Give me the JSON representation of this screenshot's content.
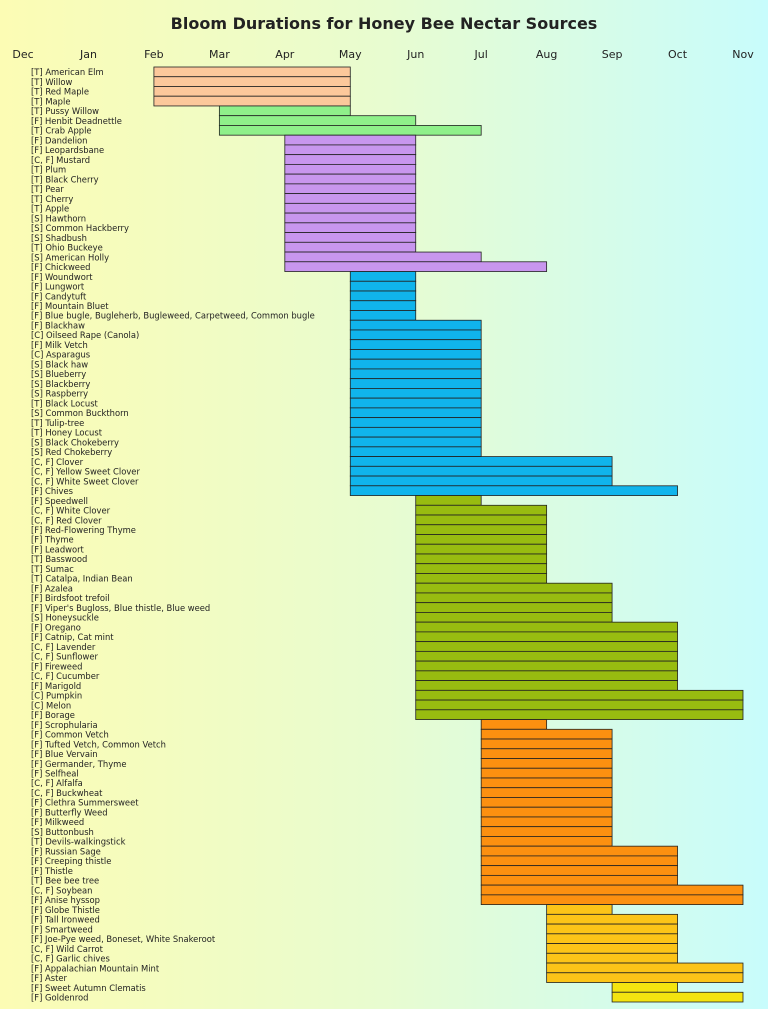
{
  "chart_data": {
    "type": "bar",
    "orientation": "horizontal",
    "title": "Bloom Durations for Honey Bee Nectar Sources",
    "x_axis": {
      "ticks": [
        "Dec",
        "Jan",
        "Feb",
        "Mar",
        "Apr",
        "May",
        "Jun",
        "Jul",
        "Aug",
        "Sep",
        "Oct",
        "Nov"
      ],
      "unit": "month (start of month)",
      "range": [
        "Dec",
        "Nov"
      ]
    },
    "legend": null,
    "items": [
      {
        "label": "[T] American Elm",
        "start": "Feb",
        "end": "May",
        "group": 0
      },
      {
        "label": "[T] Willow",
        "start": "Feb",
        "end": "May",
        "group": 0
      },
      {
        "label": "[T] Red Maple",
        "start": "Feb",
        "end": "May",
        "group": 0
      },
      {
        "label": "[T] Maple",
        "start": "Feb",
        "end": "May",
        "group": 0
      },
      {
        "label": "[T] Pussy Willow",
        "start": "Mar",
        "end": "May",
        "group": 1
      },
      {
        "label": "[F] Henbit Deadnettle",
        "start": "Mar",
        "end": "Jun",
        "group": 1
      },
      {
        "label": "[T] Crab Apple",
        "start": "Mar",
        "end": "Jul",
        "group": 1
      },
      {
        "label": "[F] Dandelion",
        "start": "Apr",
        "end": "Jun",
        "group": 2
      },
      {
        "label": "[F] Leopardsbane",
        "start": "Apr",
        "end": "Jun",
        "group": 2
      },
      {
        "label": "[C, F] Mustard",
        "start": "Apr",
        "end": "Jun",
        "group": 2
      },
      {
        "label": "[T] Plum",
        "start": "Apr",
        "end": "Jun",
        "group": 2
      },
      {
        "label": "[T] Black Cherry",
        "start": "Apr",
        "end": "Jun",
        "group": 2
      },
      {
        "label": "[T] Pear",
        "start": "Apr",
        "end": "Jun",
        "group": 2
      },
      {
        "label": "[T] Cherry",
        "start": "Apr",
        "end": "Jun",
        "group": 2
      },
      {
        "label": "[T] Apple",
        "start": "Apr",
        "end": "Jun",
        "group": 2
      },
      {
        "label": "[S] Hawthorn",
        "start": "Apr",
        "end": "Jun",
        "group": 2
      },
      {
        "label": "[S] Common Hackberry",
        "start": "Apr",
        "end": "Jun",
        "group": 2
      },
      {
        "label": "[S] Shadbush",
        "start": "Apr",
        "end": "Jun",
        "group": 2
      },
      {
        "label": "[T] Ohio Buckeye",
        "start": "Apr",
        "end": "Jun",
        "group": 2
      },
      {
        "label": "[S] American Holly",
        "start": "Apr",
        "end": "Jul",
        "group": 2
      },
      {
        "label": "[F] Chickweed",
        "start": "Apr",
        "end": "Aug",
        "group": 2
      },
      {
        "label": "[F] Woundwort",
        "start": "May",
        "end": "Jun",
        "group": 3
      },
      {
        "label": "[F] Lungwort",
        "start": "May",
        "end": "Jun",
        "group": 3
      },
      {
        "label": "[F] Candytuft",
        "start": "May",
        "end": "Jun",
        "group": 3
      },
      {
        "label": "[F] Mountain Bluet",
        "start": "May",
        "end": "Jun",
        "group": 3
      },
      {
        "label": "[F] Blue bugle, Bugleherb, Bugleweed, Carpetweed, Common bugle",
        "start": "May",
        "end": "Jun",
        "group": 3
      },
      {
        "label": "[F] Blackhaw",
        "start": "May",
        "end": "Jul",
        "group": 3
      },
      {
        "label": "[C] Oilseed Rape (Canola)",
        "start": "May",
        "end": "Jul",
        "group": 3
      },
      {
        "label": "[F] Milk Vetch",
        "start": "May",
        "end": "Jul",
        "group": 3
      },
      {
        "label": "[C] Asparagus",
        "start": "May",
        "end": "Jul",
        "group": 3
      },
      {
        "label": "[S] Black haw",
        "start": "May",
        "end": "Jul",
        "group": 3
      },
      {
        "label": "[S] Blueberry",
        "start": "May",
        "end": "Jul",
        "group": 3
      },
      {
        "label": "[S] Blackberry",
        "start": "May",
        "end": "Jul",
        "group": 3
      },
      {
        "label": "[S] Raspberry",
        "start": "May",
        "end": "Jul",
        "group": 3
      },
      {
        "label": "[T] Black Locust",
        "start": "May",
        "end": "Jul",
        "group": 3
      },
      {
        "label": "[S] Common Buckthorn",
        "start": "May",
        "end": "Jul",
        "group": 3
      },
      {
        "label": "[T] Tulip-tree",
        "start": "May",
        "end": "Jul",
        "group": 3
      },
      {
        "label": "[T] Honey Locust",
        "start": "May",
        "end": "Jul",
        "group": 3
      },
      {
        "label": "[S] Black Chokeberry",
        "start": "May",
        "end": "Jul",
        "group": 3
      },
      {
        "label": "[S] Red Chokeberry",
        "start": "May",
        "end": "Jul",
        "group": 3
      },
      {
        "label": "[C, F] Clover",
        "start": "May",
        "end": "Sep",
        "group": 3
      },
      {
        "label": "[C, F] Yellow Sweet Clover",
        "start": "May",
        "end": "Sep",
        "group": 3
      },
      {
        "label": "[C, F] White Sweet Clover",
        "start": "May",
        "end": "Sep",
        "group": 3
      },
      {
        "label": "[F] Chives",
        "start": "May",
        "end": "Oct",
        "group": 3
      },
      {
        "label": "[F] Speedwell",
        "start": "Jun",
        "end": "Jul",
        "group": 4
      },
      {
        "label": "[C, F] White Clover",
        "start": "Jun",
        "end": "Aug",
        "group": 4
      },
      {
        "label": "[C, F] Red Clover",
        "start": "Jun",
        "end": "Aug",
        "group": 4
      },
      {
        "label": "[F] Red-Flowering Thyme",
        "start": "Jun",
        "end": "Aug",
        "group": 4
      },
      {
        "label": "[F] Thyme",
        "start": "Jun",
        "end": "Aug",
        "group": 4
      },
      {
        "label": "[F] Leadwort",
        "start": "Jun",
        "end": "Aug",
        "group": 4
      },
      {
        "label": "[T] Basswood",
        "start": "Jun",
        "end": "Aug",
        "group": 4
      },
      {
        "label": "[T] Sumac",
        "start": "Jun",
        "end": "Aug",
        "group": 4
      },
      {
        "label": "[T] Catalpa, Indian Bean",
        "start": "Jun",
        "end": "Aug",
        "group": 4
      },
      {
        "label": "[F] Azalea",
        "start": "Jun",
        "end": "Sep",
        "group": 4
      },
      {
        "label": "[F] Birdsfoot trefoil",
        "start": "Jun",
        "end": "Sep",
        "group": 4
      },
      {
        "label": "[F] Viper's Bugloss, Blue thistle, Blue weed",
        "start": "Jun",
        "end": "Sep",
        "group": 4
      },
      {
        "label": "[S] Honeysuckle",
        "start": "Jun",
        "end": "Sep",
        "group": 4
      },
      {
        "label": "[F] Oregano",
        "start": "Jun",
        "end": "Oct",
        "group": 4
      },
      {
        "label": "[F] Catnip, Cat mint",
        "start": "Jun",
        "end": "Oct",
        "group": 4
      },
      {
        "label": "[C, F] Lavender",
        "start": "Jun",
        "end": "Oct",
        "group": 4
      },
      {
        "label": "[C, F] Sunflower",
        "start": "Jun",
        "end": "Oct",
        "group": 4
      },
      {
        "label": "[F] Fireweed",
        "start": "Jun",
        "end": "Oct",
        "group": 4
      },
      {
        "label": "[C, F] Cucumber",
        "start": "Jun",
        "end": "Oct",
        "group": 4
      },
      {
        "label": "[F] Marigold",
        "start": "Jun",
        "end": "Oct",
        "group": 4
      },
      {
        "label": "[C] Pumpkin",
        "start": "Jun",
        "end": "Nov",
        "group": 4
      },
      {
        "label": "[C] Melon",
        "start": "Jun",
        "end": "Nov",
        "group": 4
      },
      {
        "label": "[F] Borage",
        "start": "Jun",
        "end": "Nov",
        "group": 4
      },
      {
        "label": "[F] Scrophularia",
        "start": "Jul",
        "end": "Aug",
        "group": 5
      },
      {
        "label": "[F] Common Vetch",
        "start": "Jul",
        "end": "Sep",
        "group": 5
      },
      {
        "label": "[F] Tufted Vetch, Common Vetch",
        "start": "Jul",
        "end": "Sep",
        "group": 5
      },
      {
        "label": "[F] Blue Vervain",
        "start": "Jul",
        "end": "Sep",
        "group": 5
      },
      {
        "label": "[F] Germander, Thyme",
        "start": "Jul",
        "end": "Sep",
        "group": 5
      },
      {
        "label": "[F] Selfheal",
        "start": "Jul",
        "end": "Sep",
        "group": 5
      },
      {
        "label": "[C, F] Alfalfa",
        "start": "Jul",
        "end": "Sep",
        "group": 5
      },
      {
        "label": "[C, F] Buckwheat",
        "start": "Jul",
        "end": "Sep",
        "group": 5
      },
      {
        "label": "[F] Clethra Summersweet",
        "start": "Jul",
        "end": "Sep",
        "group": 5
      },
      {
        "label": "[F] Butterfly Weed",
        "start": "Jul",
        "end": "Sep",
        "group": 5
      },
      {
        "label": "[F] Milkweed",
        "start": "Jul",
        "end": "Sep",
        "group": 5
      },
      {
        "label": "[S] Buttonbush",
        "start": "Jul",
        "end": "Sep",
        "group": 5
      },
      {
        "label": "[T] Devils-walkingstick",
        "start": "Jul",
        "end": "Sep",
        "group": 5
      },
      {
        "label": "[F] Russian Sage",
        "start": "Jul",
        "end": "Oct",
        "group": 5
      },
      {
        "label": "[F] Creeping thistle",
        "start": "Jul",
        "end": "Oct",
        "group": 5
      },
      {
        "label": "[F] Thistle",
        "start": "Jul",
        "end": "Oct",
        "group": 5
      },
      {
        "label": "[T] Bee bee tree",
        "start": "Jul",
        "end": "Oct",
        "group": 5
      },
      {
        "label": "[C, F] Soybean",
        "start": "Jul",
        "end": "Nov",
        "group": 5
      },
      {
        "label": "[F] Anise hyssop",
        "start": "Jul",
        "end": "Nov",
        "group": 5
      },
      {
        "label": "[F] Globe Thistle",
        "start": "Aug",
        "end": "Sep",
        "group": 6
      },
      {
        "label": "[F] Tall Ironweed",
        "start": "Aug",
        "end": "Oct",
        "group": 6
      },
      {
        "label": "[F] Smartweed",
        "start": "Aug",
        "end": "Oct",
        "group": 6
      },
      {
        "label": "[F] Joe-Pye weed, Boneset, White Snakeroot",
        "start": "Aug",
        "end": "Oct",
        "group": 6
      },
      {
        "label": "[C, F] Wild Carrot",
        "start": "Aug",
        "end": "Oct",
        "group": 6
      },
      {
        "label": "[C, F] Garlic chives",
        "start": "Aug",
        "end": "Oct",
        "group": 6
      },
      {
        "label": "[F] Appalachian Mountain Mint",
        "start": "Aug",
        "end": "Nov",
        "group": 6
      },
      {
        "label": "[F] Aster",
        "start": "Aug",
        "end": "Nov",
        "group": 6
      },
      {
        "label": "[F] Sweet Autumn Clematis",
        "start": "Sep",
        "end": "Oct",
        "group": 7
      },
      {
        "label": "[F] Goldenrod",
        "start": "Sep",
        "end": "Nov",
        "group": 7
      }
    ],
    "group_colors": [
      "#fcc89b",
      "#8ff08a",
      "#c896ee",
      "#10b4ec",
      "#98bc10",
      "#fc9010",
      "#fcc418",
      "#f4e410"
    ],
    "grid": false
  }
}
